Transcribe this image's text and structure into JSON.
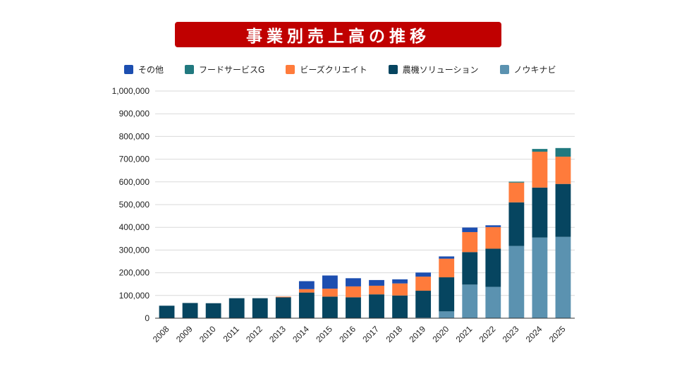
{
  "title": "事業別売上高の推移",
  "colors": {
    "title_bg": "#c00000",
    "grid": "#d9d9d9",
    "axis": "#333333"
  },
  "chart_data": {
    "type": "bar",
    "stacked": true,
    "title": "事業別売上高の推移",
    "categories": [
      "2008",
      "2009",
      "2010",
      "2011",
      "2012",
      "2013",
      "2014",
      "2015",
      "2016",
      "2017",
      "2018",
      "2019",
      "2020",
      "2021",
      "2022",
      "2023",
      "2024",
      "2025"
    ],
    "ylim": [
      0,
      1000000
    ],
    "yticks": [
      0,
      100000,
      200000,
      300000,
      400000,
      500000,
      600000,
      700000,
      800000,
      900000,
      1000000
    ],
    "ytick_labels": [
      "0",
      "100,000",
      "200,000",
      "300,000",
      "400,000",
      "500,000",
      "600,000",
      "700,000",
      "800,000",
      "900,000",
      "1,000,000"
    ],
    "grid": true,
    "legend_position": "top",
    "series": [
      {
        "name": "ノウキナビ",
        "color": "#5b92b0",
        "values": [
          0,
          0,
          0,
          0,
          0,
          0,
          0,
          0,
          0,
          0,
          0,
          3000,
          30000,
          148000,
          138000,
          318000,
          355000,
          358000
        ]
      },
      {
        "name": "農機ソリューション",
        "color": "#064560",
        "values": [
          55000,
          67000,
          66000,
          88000,
          88000,
          92000,
          113000,
          95000,
          92000,
          105000,
          100000,
          118000,
          150000,
          143000,
          168000,
          192000,
          220000,
          233000
        ]
      },
      {
        "name": "ビーズクリエイト",
        "color": "#ff7b3b",
        "values": [
          0,
          0,
          0,
          0,
          0,
          3000,
          15000,
          35000,
          48000,
          38000,
          53000,
          62000,
          82000,
          88000,
          95000,
          87000,
          158000,
          120000
        ]
      },
      {
        "name": "フードサービスG",
        "color": "#21797f",
        "values": [
          0,
          0,
          0,
          0,
          0,
          0,
          0,
          0,
          0,
          0,
          0,
          0,
          0,
          0,
          0,
          4000,
          12000,
          38000
        ]
      },
      {
        "name": "その他",
        "color": "#1c4eb0",
        "values": [
          0,
          0,
          0,
          0,
          0,
          0,
          35000,
          58000,
          36000,
          25000,
          18000,
          18000,
          10000,
          20000,
          8000,
          0,
          0,
          0
        ]
      }
    ],
    "legend_order": [
      "その他",
      "フードサービスG",
      "ビーズクリエイト",
      "農機ソリューション",
      "ノウキナビ"
    ]
  }
}
